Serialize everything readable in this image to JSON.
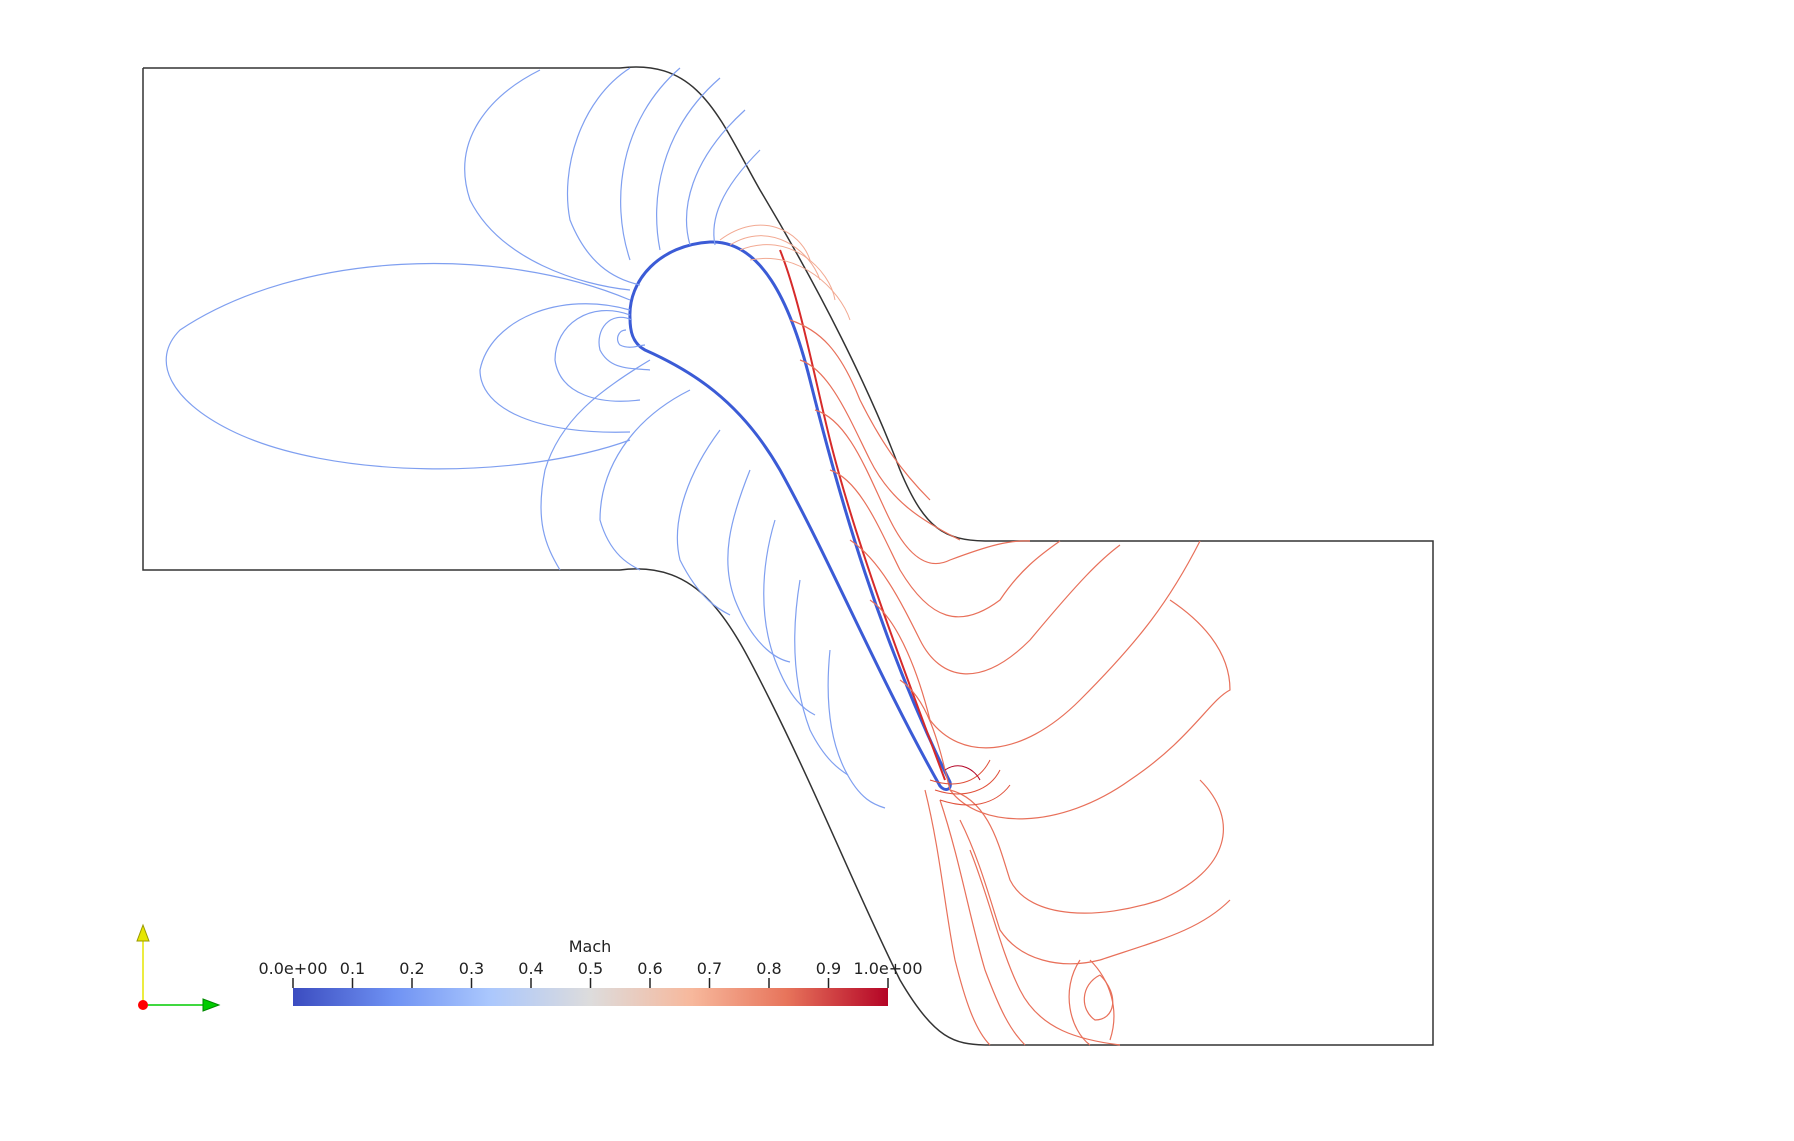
{
  "colorbar": {
    "title": "Mach",
    "tick_labels": [
      "0.0e+00",
      "0.1",
      "0.2",
      "0.3",
      "0.4",
      "0.5",
      "0.6",
      "0.7",
      "0.8",
      "0.9",
      "1.0e+00"
    ],
    "range": [
      0.0,
      1.0
    ],
    "colormap": [
      "#3b4cc0",
      "#6f92f3",
      "#aac7fd",
      "#dddcdc",
      "#f7b89c",
      "#e7745b",
      "#b40426"
    ]
  },
  "orientation_axes": {
    "x_color": "#00cc00",
    "y_color": "#e6e600",
    "z_color": "#ff0000"
  },
  "contour_colors": {
    "low": "#5a78e0",
    "mid_low": "#8fb0f5",
    "mid_high": "#f4b0a0",
    "high": "#e0503a",
    "outline": "#333333"
  }
}
